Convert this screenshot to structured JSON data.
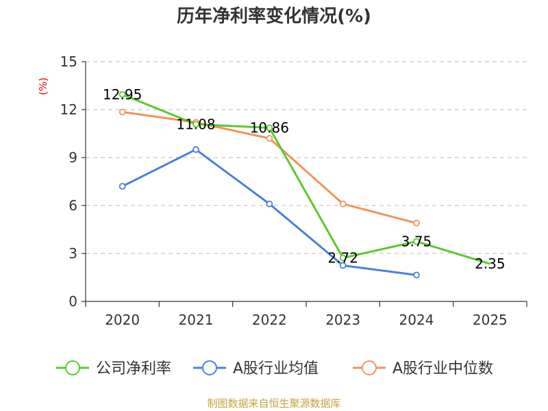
{
  "chart_data": {
    "type": "line",
    "title": "历年净利率变化情况(%)",
    "ylabel": "(%)",
    "xlabel": "",
    "categories": [
      "2020",
      "2021",
      "2022",
      "2023",
      "2024",
      "2025"
    ],
    "ylim": [
      0,
      15
    ],
    "yticks": [
      0,
      3,
      6,
      9,
      12,
      15
    ],
    "grid": true,
    "legend_position": "bottom",
    "series": [
      {
        "name": "公司净利率",
        "color": "#5cc72f",
        "values": [
          12.95,
          11.08,
          10.86,
          2.72,
          3.75,
          2.35
        ],
        "labels": [
          "12.95",
          "11.08",
          "10.86",
          "2.72",
          "3.75",
          "2.35"
        ]
      },
      {
        "name": "A股行业均值",
        "color": "#4a7fdc",
        "values": [
          7.2,
          9.5,
          6.1,
          2.25,
          1.65,
          null
        ]
      },
      {
        "name": "A股行业中位数",
        "color": "#f4925a",
        "values": [
          11.85,
          11.2,
          10.2,
          6.1,
          4.9,
          null
        ]
      }
    ]
  },
  "source": "制图数据来自恒生聚源数据库"
}
